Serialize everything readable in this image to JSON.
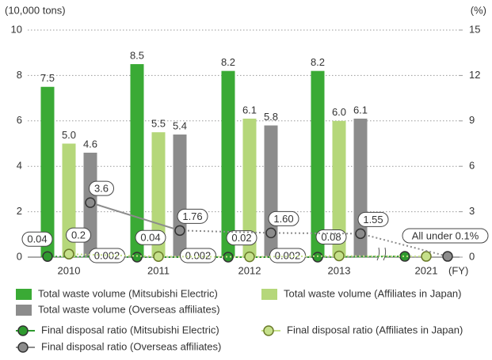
{
  "chart_data": {
    "type": "combo",
    "y_label": "(10,000 tons)",
    "y2_label": "(%)",
    "x_label": "(FY)",
    "categories": [
      "2010",
      "2011",
      "2012",
      "2013",
      "2021"
    ],
    "ylim": [
      0,
      10
    ],
    "yticks": [
      0,
      2,
      4,
      6,
      8,
      10
    ],
    "y2lim": [
      0,
      15
    ],
    "y2ticks": [
      0,
      3,
      6,
      9,
      12,
      15
    ],
    "grid": true,
    "annotation": "All under 0.1%",
    "series": [
      {
        "name": "Total waste volume (Mitsubishi Electric)",
        "type": "bar",
        "color": "#3aaa35",
        "values": [
          7.5,
          8.5,
          8.2,
          8.2,
          null
        ]
      },
      {
        "name": "Total waste volume (Affiliates in Japan)",
        "type": "bar",
        "color": "#b5d77a",
        "values": [
          5.0,
          5.5,
          6.1,
          6.0,
          null
        ],
        "value_labels": [
          "5.0",
          "5.5",
          "6.1",
          "6.0",
          null
        ]
      },
      {
        "name": "Total waste volume (Overseas affiliates)",
        "type": "bar",
        "color": "#8c8c8c",
        "values": [
          4.6,
          5.4,
          5.8,
          6.1,
          null
        ]
      },
      {
        "name": "Final disposal ratio (Mitsubishi Electric)",
        "type": "line",
        "axis": "y2",
        "color": "#2e9a2e",
        "values": [
          0.04,
          0.002,
          0.002,
          0.002,
          0.05
        ],
        "value_labels": [
          "0.04",
          "0.002",
          "0.002",
          "0.002",
          null
        ]
      },
      {
        "name": "Final disposal ratio (Affiliates in Japan)",
        "type": "line",
        "axis": "y2",
        "color": "#c5e08a",
        "values": [
          0.2,
          0.04,
          0.02,
          0.08,
          0.05
        ],
        "value_labels": [
          "0.2",
          "0.04",
          "0.02",
          "0.08",
          null
        ]
      },
      {
        "name": "Final disposal ratio (Overseas affiliates)",
        "type": "line",
        "axis": "y2",
        "color": "#8c8c8c",
        "values": [
          3.6,
          1.76,
          1.6,
          1.55,
          0.05
        ],
        "value_labels": [
          "3.6",
          "1.76",
          "1.60",
          "1.55",
          null
        ]
      }
    ]
  }
}
